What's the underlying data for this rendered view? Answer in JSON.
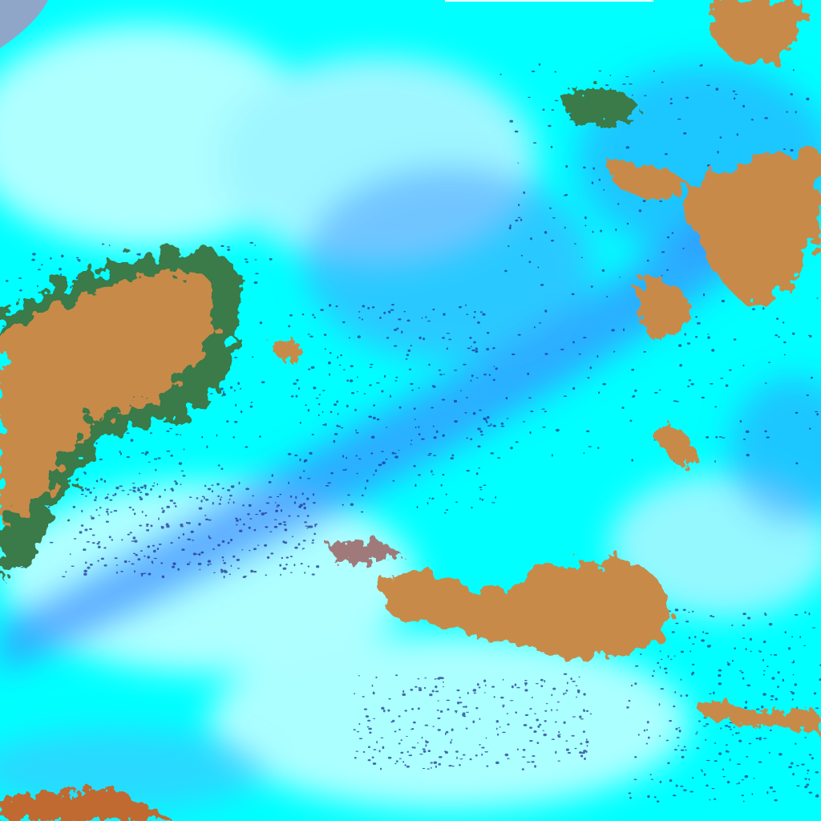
{
  "image": {
    "kind": "false-color satellite imagery",
    "colors": {
      "cloud_cyan": "#00ffff",
      "cloud_white": "#e8ffff",
      "thin_cloud_blue": "#3a8cff",
      "deep_blue": "#1e5aff",
      "land_orange": "#c88a4a",
      "vegetation_green": "#3a7a4a",
      "corner_grey": "#8fa6c8"
    }
  }
}
